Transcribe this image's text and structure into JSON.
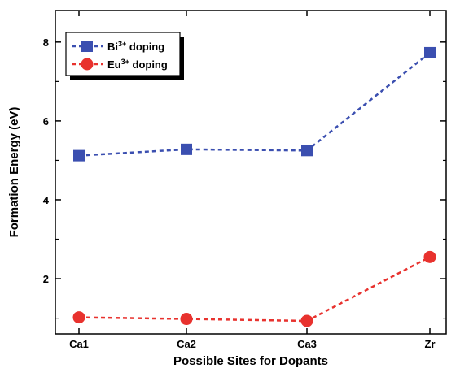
{
  "chart_data": {
    "type": "line",
    "xlabel": "Possible Sites for Dopants",
    "ylabel": "Formation Energy (eV)",
    "categories": [
      "Ca1",
      "Ca2",
      "Ca3",
      "Zr"
    ],
    "ylim": [
      0.6,
      8.8
    ],
    "yticks": [
      2,
      4,
      6,
      8
    ],
    "grid": false,
    "legend_position": "top-left",
    "series": [
      {
        "name": "Bi3+ doping",
        "legend_base": "Bi",
        "legend_sup": "3+",
        "legend_rest": " doping",
        "marker": "square",
        "line_style": "dashed",
        "color": "#3b4fb0",
        "values": [
          5.12,
          5.28,
          5.25,
          7.73
        ]
      },
      {
        "name": "Eu3+ doping",
        "legend_base": "Eu",
        "legend_sup": "3+",
        "legend_rest": " doping",
        "marker": "circle",
        "line_style": "dashed",
        "color": "#e8322e",
        "values": [
          1.02,
          0.98,
          0.93,
          2.55
        ]
      }
    ]
  }
}
